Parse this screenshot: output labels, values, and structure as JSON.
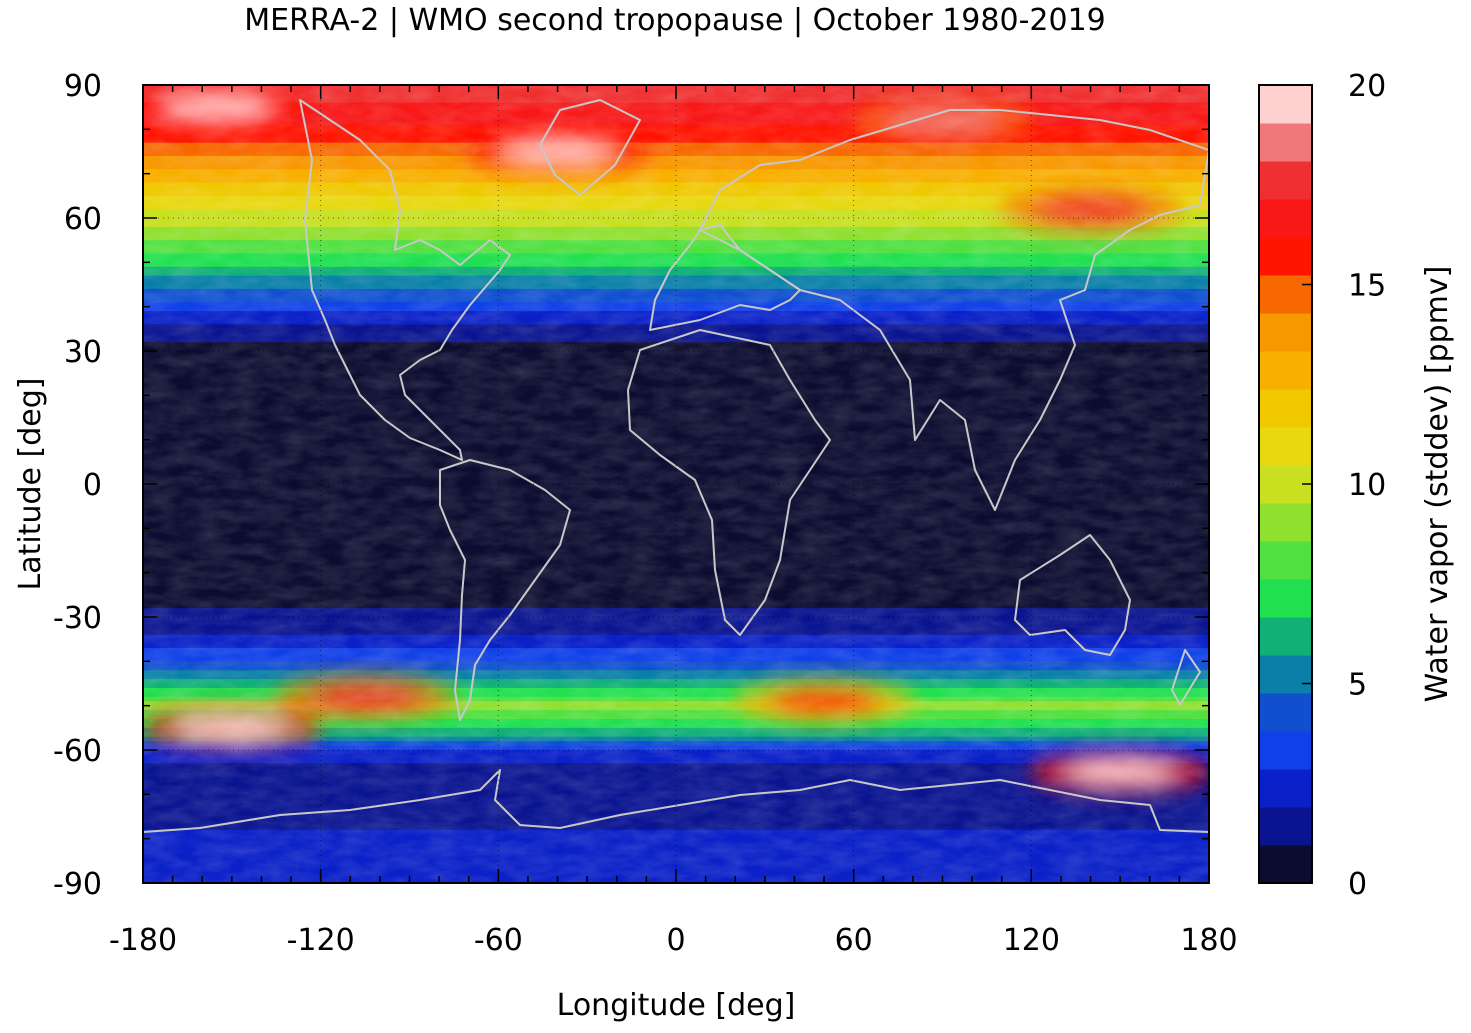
{
  "title": "MERRA-2 | WMO second tropopause | October 1980-2019",
  "xaxis": {
    "label": "Longitude [deg]",
    "range": [
      -180,
      180
    ],
    "ticks": [
      {
        "value": -180,
        "label": "-180"
      },
      {
        "value": -120,
        "label": "-120"
      },
      {
        "value": -60,
        "label": "-60"
      },
      {
        "value": 0,
        "label": "0"
      },
      {
        "value": 60,
        "label": "60"
      },
      {
        "value": 120,
        "label": "120"
      },
      {
        "value": 180,
        "label": "180"
      }
    ]
  },
  "yaxis": {
    "label": "Latitude [deg]",
    "range": [
      -90,
      90
    ],
    "ticks": [
      {
        "value": 90,
        "label": "90"
      },
      {
        "value": 60,
        "label": "60"
      },
      {
        "value": 30,
        "label": "30"
      },
      {
        "value": 0,
        "label": "0"
      },
      {
        "value": -30,
        "label": "-30"
      },
      {
        "value": -60,
        "label": "-60"
      },
      {
        "value": -90,
        "label": "-90"
      }
    ]
  },
  "colorbar": {
    "label": "Water vapor (stddev) [ppmv]",
    "range": [
      0,
      20
    ],
    "ticks": [
      {
        "value": 20,
        "label": "20"
      },
      {
        "value": 15,
        "label": "15"
      },
      {
        "value": 10,
        "label": "10"
      },
      {
        "value": 5,
        "label": "5"
      },
      {
        "value": 0,
        "label": "0"
      }
    ],
    "colors": [
      "#0c0c30",
      "#0a1490",
      "#0a20c8",
      "#1040e8",
      "#1050d0",
      "#0a80a8",
      "#10b078",
      "#20e050",
      "#50e040",
      "#90e030",
      "#c8e020",
      "#e8d810",
      "#f0c800",
      "#f8b000",
      "#f89800",
      "#f86800",
      "#ff1400",
      "#f81818",
      "#f03030",
      "#f07878",
      "#ffd0d0"
    ]
  },
  "chart_data": {
    "type": "heatmap",
    "title": "MERRA-2 | WMO second tropopause | October 1980-2019",
    "xlabel": "Longitude [deg]",
    "ylabel": "Latitude [deg]",
    "xlim": [
      -180,
      180
    ],
    "ylim": [
      -90,
      90
    ],
    "colorbar_label": "Water vapor (stddev) [ppmv]",
    "zlim": [
      0,
      20
    ],
    "grid": true,
    "latitude_profile_ppmv": [
      {
        "lat": 90,
        "value": 18
      },
      {
        "lat": 80,
        "value": 16
      },
      {
        "lat": 70,
        "value": 13
      },
      {
        "lat": 60,
        "value": 10
      },
      {
        "lat": 50,
        "value": 7
      },
      {
        "lat": 42,
        "value": 4
      },
      {
        "lat": 35,
        "value": 1.5
      },
      {
        "lat": 30,
        "value": 0.5
      },
      {
        "lat": 0,
        "value": 0.3
      },
      {
        "lat": -25,
        "value": 0.5
      },
      {
        "lat": -35,
        "value": 2
      },
      {
        "lat": -45,
        "value": 6
      },
      {
        "lat": -50,
        "value": 9
      },
      {
        "lat": -55,
        "value": 7
      },
      {
        "lat": -60,
        "value": 3
      },
      {
        "lat": -65,
        "value": 1
      },
      {
        "lat": -70,
        "value": 1.5
      },
      {
        "lat": -80,
        "value": 2
      },
      {
        "lat": -90,
        "value": 2
      }
    ],
    "hotspots": [
      {
        "lon": -150,
        "lat": -55,
        "value": 20
      },
      {
        "lon": -105,
        "lat": -48,
        "value": 18
      },
      {
        "lon": 150,
        "lat": -65,
        "value": 20
      },
      {
        "lon": 50,
        "lat": -49,
        "value": 16
      },
      {
        "lon": -155,
        "lat": 85,
        "value": 20
      },
      {
        "lon": -40,
        "lat": 75,
        "value": 20
      },
      {
        "lon": 140,
        "lat": 62,
        "value": 18
      },
      {
        "lon": 90,
        "lat": 82,
        "value": 19
      }
    ]
  }
}
